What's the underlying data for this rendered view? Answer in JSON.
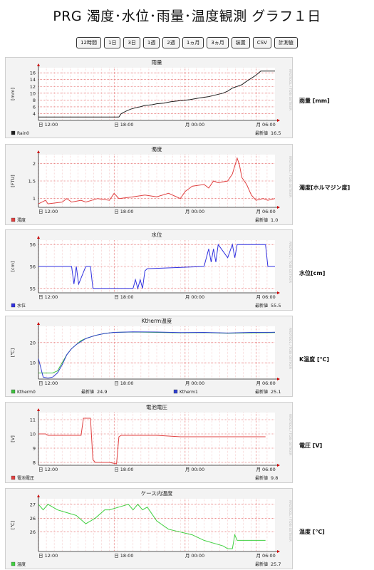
{
  "title": "PRG 濁度･水位･雨量･温度観測 グラフ１日",
  "buttons": [
    "12時間",
    "1日",
    "3日",
    "1週",
    "2週",
    "1ヵ月",
    "3ヵ月",
    "装置",
    "CSV",
    "計測値"
  ],
  "latest_label": "最新値",
  "watermark": "RRDTOOL / TOBI OETIKER",
  "colors": {
    "grid_major": "#e05050",
    "grid_minor": "#f0b8b8",
    "axis": "#222",
    "panel_bg": "#f3f3f3",
    "plot_bg": "#ffffff"
  },
  "chart_data": [
    {
      "type": "line",
      "title": "雨量",
      "ylabel": "[mm]",
      "side_label": "雨量 [mm]",
      "ylim": [
        2,
        17.5
      ],
      "yticks": [
        4,
        6,
        8,
        10,
        12,
        14,
        16
      ],
      "xlabels": [
        "日 12:00",
        "日 18:00",
        "月 00:00",
        "月 06:00"
      ],
      "series": [
        {
          "name": "Rain0",
          "color": "#202020",
          "latest": "16.5",
          "x": [
            0,
            0.34,
            0.35,
            0.37,
            0.39,
            0.41,
            0.43,
            0.45,
            0.48,
            0.5,
            0.53,
            0.56,
            0.6,
            0.64,
            0.68,
            0.72,
            0.75,
            0.78,
            0.8,
            0.82,
            0.84,
            0.86,
            0.88,
            0.9,
            0.92,
            0.94,
            1
          ],
          "y": [
            3,
            3,
            4,
            4.7,
            5.3,
            5.7,
            6,
            6.4,
            6.6,
            6.9,
            7.1,
            7.5,
            7.8,
            8.1,
            8.6,
            9,
            9.5,
            10,
            10.6,
            11.5,
            12,
            12.5,
            13.5,
            14.4,
            15.3,
            16.5,
            16.5
          ]
        }
      ]
    },
    {
      "type": "line",
      "title": "濁度",
      "ylabel": "[FTU]",
      "side_label": "濁度[ホルマジン度]",
      "ylim": [
        0.75,
        2.25
      ],
      "yticks": [
        1.0,
        1.5,
        2.0
      ],
      "xlabels": [
        "日 12:00",
        "日 18:00",
        "月 00:00",
        "月 06:00"
      ],
      "series": [
        {
          "name": "濁度",
          "color": "#e04040",
          "latest": "1.0",
          "x": [
            0,
            0.03,
            0.04,
            0.1,
            0.12,
            0.14,
            0.18,
            0.2,
            0.25,
            0.3,
            0.32,
            0.34,
            0.4,
            0.45,
            0.5,
            0.55,
            0.6,
            0.62,
            0.65,
            0.7,
            0.72,
            0.74,
            0.76,
            0.8,
            0.82,
            0.84,
            0.85,
            0.86,
            0.88,
            0.9,
            0.92,
            0.95,
            0.97,
            1
          ],
          "y": [
            0.85,
            0.95,
            0.85,
            0.9,
            1.0,
            0.9,
            0.95,
            0.9,
            1.0,
            0.95,
            1.15,
            1.0,
            1.05,
            1.1,
            1.05,
            1.15,
            1.0,
            1.2,
            1.35,
            1.4,
            1.3,
            1.5,
            1.45,
            1.5,
            1.7,
            2.15,
            1.95,
            1.6,
            1.4,
            1.1,
            0.95,
            1.0,
            0.95,
            1.0
          ]
        }
      ]
    },
    {
      "type": "line",
      "title": "水位",
      "ylabel": "[cm]",
      "side_label": "水位[cm]",
      "ylim": [
        54.9,
        56.1
      ],
      "yticks": [
        55,
        55.5,
        56
      ],
      "ytick_labels": [
        "55",
        "56",
        "56"
      ],
      "xlabels": [
        "日 12:00",
        "日 18:00",
        "月 00:00",
        "月 06:00"
      ],
      "series": [
        {
          "name": "水位",
          "color": "#3030e0",
          "latest": "55.5",
          "x": [
            0,
            0.14,
            0.15,
            0.16,
            0.17,
            0.2,
            0.22,
            0.23,
            0.24,
            0.25,
            0.4,
            0.41,
            0.42,
            0.43,
            0.44,
            0.45,
            0.46,
            0.7,
            0.72,
            0.73,
            0.74,
            0.75,
            0.76,
            0.8,
            0.82,
            0.83,
            0.84,
            0.96,
            0.97,
            1
          ],
          "y": [
            55.5,
            55.5,
            55.1,
            55.5,
            55.1,
            55.5,
            55.5,
            55.0,
            55.0,
            55.0,
            55.0,
            55.2,
            55.0,
            55.2,
            55.0,
            55.4,
            55.45,
            55.5,
            55.9,
            55.6,
            55.9,
            55.6,
            56.0,
            55.7,
            56.0,
            55.7,
            56.0,
            56.0,
            55.5,
            55.5
          ]
        }
      ]
    },
    {
      "type": "line",
      "title": "Ktherm温度",
      "ylabel": "[℃]",
      "side_label": "K温度 [℃]",
      "ylim": [
        2,
        28
      ],
      "yticks": [
        10,
        20
      ],
      "xlabels": [
        "日 12:00",
        "日 18:00",
        "月 00:00",
        "月 06:00"
      ],
      "series": [
        {
          "name": "Ktherm0",
          "color": "#40c040",
          "latest": "24.9",
          "x": [
            0,
            0.02,
            0.04,
            0.06,
            0.08,
            0.1,
            0.12,
            0.14,
            0.16,
            0.18,
            0.2,
            0.24,
            0.28,
            0.32,
            0.4,
            0.5,
            0.6,
            0.7,
            0.8,
            0.9,
            1
          ],
          "y": [
            5,
            5,
            5,
            5,
            6,
            10,
            14,
            17,
            19,
            21,
            22,
            23.5,
            24.5,
            25,
            25.2,
            25,
            24.8,
            24.9,
            24.6,
            24.8,
            24.9
          ]
        },
        {
          "name": "Ktherm1",
          "color": "#3040d0",
          "latest": "25.1",
          "x": [
            0,
            0.02,
            0.04,
            0.06,
            0.08,
            0.1,
            0.12,
            0.14,
            0.16,
            0.18,
            0.2,
            0.24,
            0.28,
            0.32,
            0.4,
            0.5,
            0.6,
            0.7,
            0.8,
            0.9,
            1
          ],
          "y": [
            12,
            3,
            2.5,
            3,
            5,
            9,
            14,
            17,
            19,
            20.5,
            22,
            23.5,
            24.5,
            25,
            25.3,
            25.2,
            24.9,
            25,
            24.7,
            25,
            25.1
          ]
        }
      ]
    },
    {
      "type": "line",
      "title": "電池電圧",
      "ylabel": "[V]",
      "side_label": "電圧 [V]",
      "ylim": [
        7.8,
        11.5
      ],
      "yticks": [
        8,
        9,
        10,
        11
      ],
      "xlabels": [
        "日 12:00",
        "日 18:00",
        "月 00:00",
        "月 06:00"
      ],
      "series": [
        {
          "name": "電池電圧",
          "color": "#e04040",
          "latest": "9.8",
          "x": [
            0,
            0.03,
            0.04,
            0.18,
            0.19,
            0.22,
            0.23,
            0.24,
            0.3,
            0.33,
            0.34,
            0.35,
            0.5,
            0.6,
            0.7,
            0.8,
            0.9,
            0.96
          ],
          "y": [
            10.0,
            10.0,
            9.9,
            9.9,
            11.1,
            11.1,
            8.2,
            8.0,
            8.0,
            7.9,
            9.8,
            9.9,
            9.9,
            9.8,
            9.8,
            9.8,
            9.8,
            9.8
          ]
        }
      ]
    },
    {
      "type": "line",
      "title": "ケース内温度",
      "ylabel": "[℃]",
      "side_label": "温度 [℃]",
      "ylim": [
        25.3,
        27.2
      ],
      "yticks": [
        26,
        26.5,
        27
      ],
      "ytick_labels": [
        "26",
        "26",
        "27"
      ],
      "xlabels": [
        "日 12:00",
        "日 18:00",
        "月 00:00",
        "月 06:00"
      ],
      "series": [
        {
          "name": "温度",
          "color": "#40d040",
          "latest": "25.7",
          "x": [
            0,
            0.02,
            0.04,
            0.08,
            0.12,
            0.16,
            0.2,
            0.24,
            0.28,
            0.3,
            0.34,
            0.38,
            0.4,
            0.42,
            0.44,
            0.46,
            0.5,
            0.55,
            0.6,
            0.65,
            0.7,
            0.74,
            0.78,
            0.8,
            0.82,
            0.83,
            0.84,
            0.86,
            0.9,
            0.96
          ],
          "y": [
            27,
            26.8,
            27,
            26.8,
            26.7,
            26.6,
            26.3,
            26.5,
            26.8,
            26.8,
            26.9,
            27,
            26.8,
            27,
            26.8,
            26.9,
            26.4,
            26.1,
            26,
            25.9,
            25.7,
            25.6,
            25.5,
            25.4,
            25.4,
            25.9,
            25.7,
            25.7,
            25.7,
            25.7
          ]
        }
      ]
    }
  ]
}
